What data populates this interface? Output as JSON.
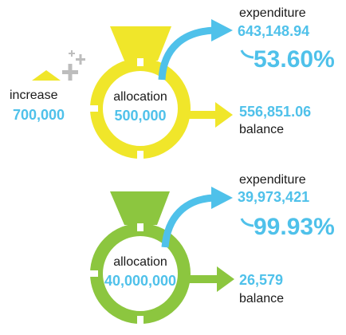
{
  "sections": [
    {
      "increase": {
        "label": "increase",
        "value": "700,000"
      },
      "allocation": {
        "label": "allocation",
        "value": "500,000"
      },
      "expenditure": {
        "label": "expenditure",
        "value": "643,148.94",
        "percent": "53.60%"
      },
      "balance": {
        "value": "556,851.06",
        "label": "balance"
      }
    },
    {
      "allocation": {
        "label": "allocation",
        "value": "40,000,000"
      },
      "expenditure": {
        "label": "expenditure",
        "value": "39,973,421",
        "percent": "99.93%"
      },
      "balance": {
        "value": "26,579",
        "label": "balance"
      }
    }
  ]
}
